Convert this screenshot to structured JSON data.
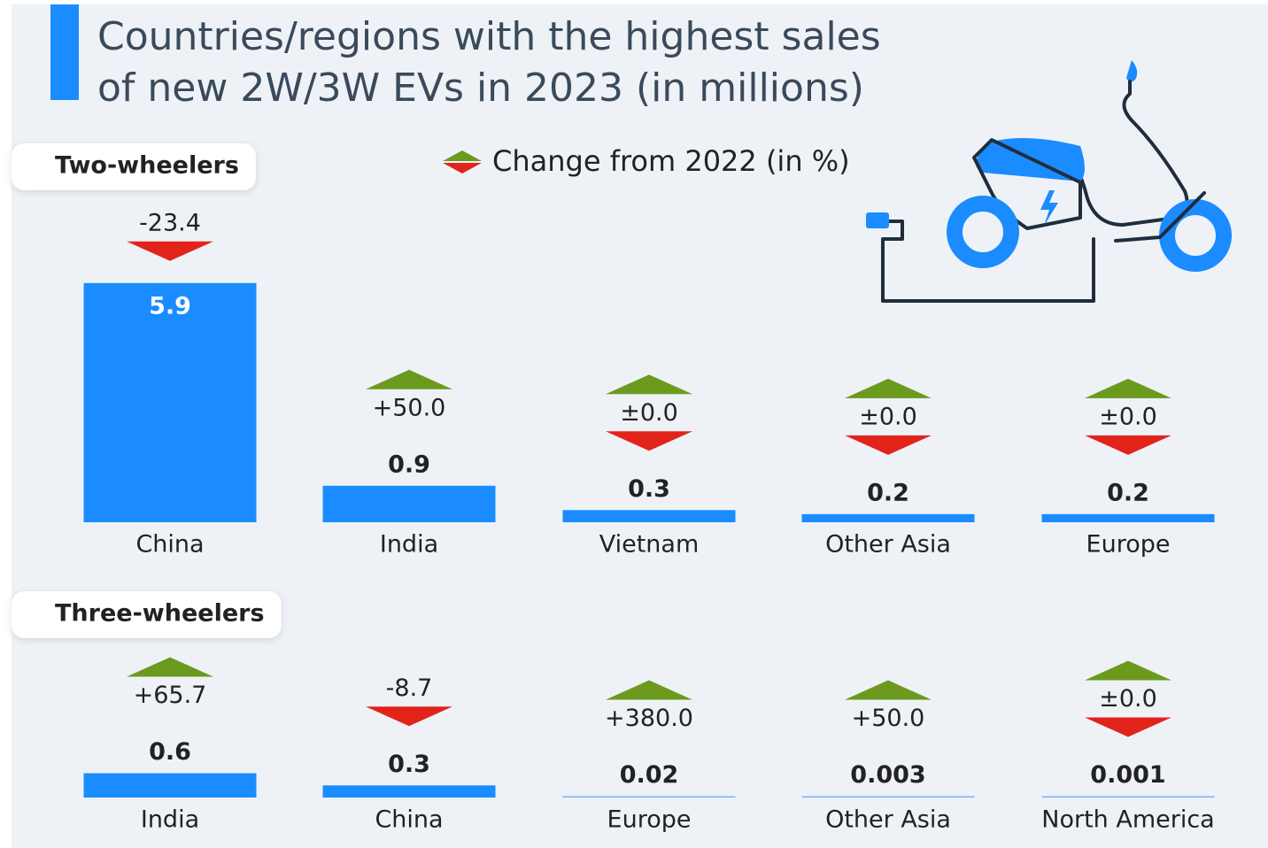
{
  "title": [
    "Countries/regions with the highest sales",
    "of new 2W/3W EVs in 2023 (in millions)"
  ],
  "legend": "Change from 2022 (in %)",
  "chart_data": [
    {
      "type": "bar",
      "title": "Two-wheelers",
      "color": "#1a8cff",
      "categories": [
        "China",
        "India",
        "Vietnam",
        "Other Asia",
        "Europe"
      ],
      "values": [
        5.9,
        0.9,
        0.3,
        0.2,
        0.2
      ],
      "changes": [
        -23.4,
        50,
        0,
        0,
        0
      ],
      "change_labels": [
        "-23.4",
        "+50.0",
        "±0.0",
        "±0.0",
        "±0.0"
      ]
    },
    {
      "type": "bar",
      "title": "Three-wheelers",
      "color": "#1a8cff",
      "categories": [
        "India",
        "China",
        "Europe",
        "Other Asia",
        "North America"
      ],
      "values": [
        0.6,
        0.3,
        0.02,
        0.003,
        0.001
      ],
      "changes": [
        65.7,
        -8.7,
        380,
        50,
        0
      ],
      "change_labels": [
        "+65.7",
        "-8.7",
        "+380.0",
        "+50.0",
        "±0.0"
      ]
    }
  ]
}
